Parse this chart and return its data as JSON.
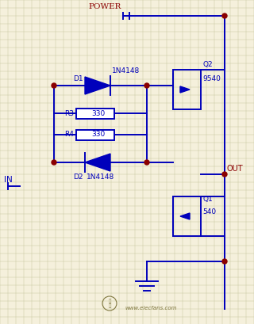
{
  "background_color": "#f5f0dc",
  "grid_color": "#c8c8a0",
  "line_color": "#0000bb",
  "dot_color": "#8b0000",
  "text_color": "#0000bb",
  "label_color": "#8b0000",
  "fig_width": 3.2,
  "fig_height": 4.09,
  "dpi": 100,
  "power_label": "POWER",
  "out_label": "OUT",
  "in_label": "IN",
  "d1_label": "D1",
  "d2_label": "D2",
  "d1_type": "1N4148",
  "d2_type": "1N4148",
  "r3_label": "R3",
  "r4_label": "R4",
  "r3_val": "330",
  "r4_val": "330",
  "q1_label": "Q1",
  "q2_label": "Q2",
  "q1_type": "540",
  "q2_type": "9540",
  "watermark": "www.elecfans.com"
}
